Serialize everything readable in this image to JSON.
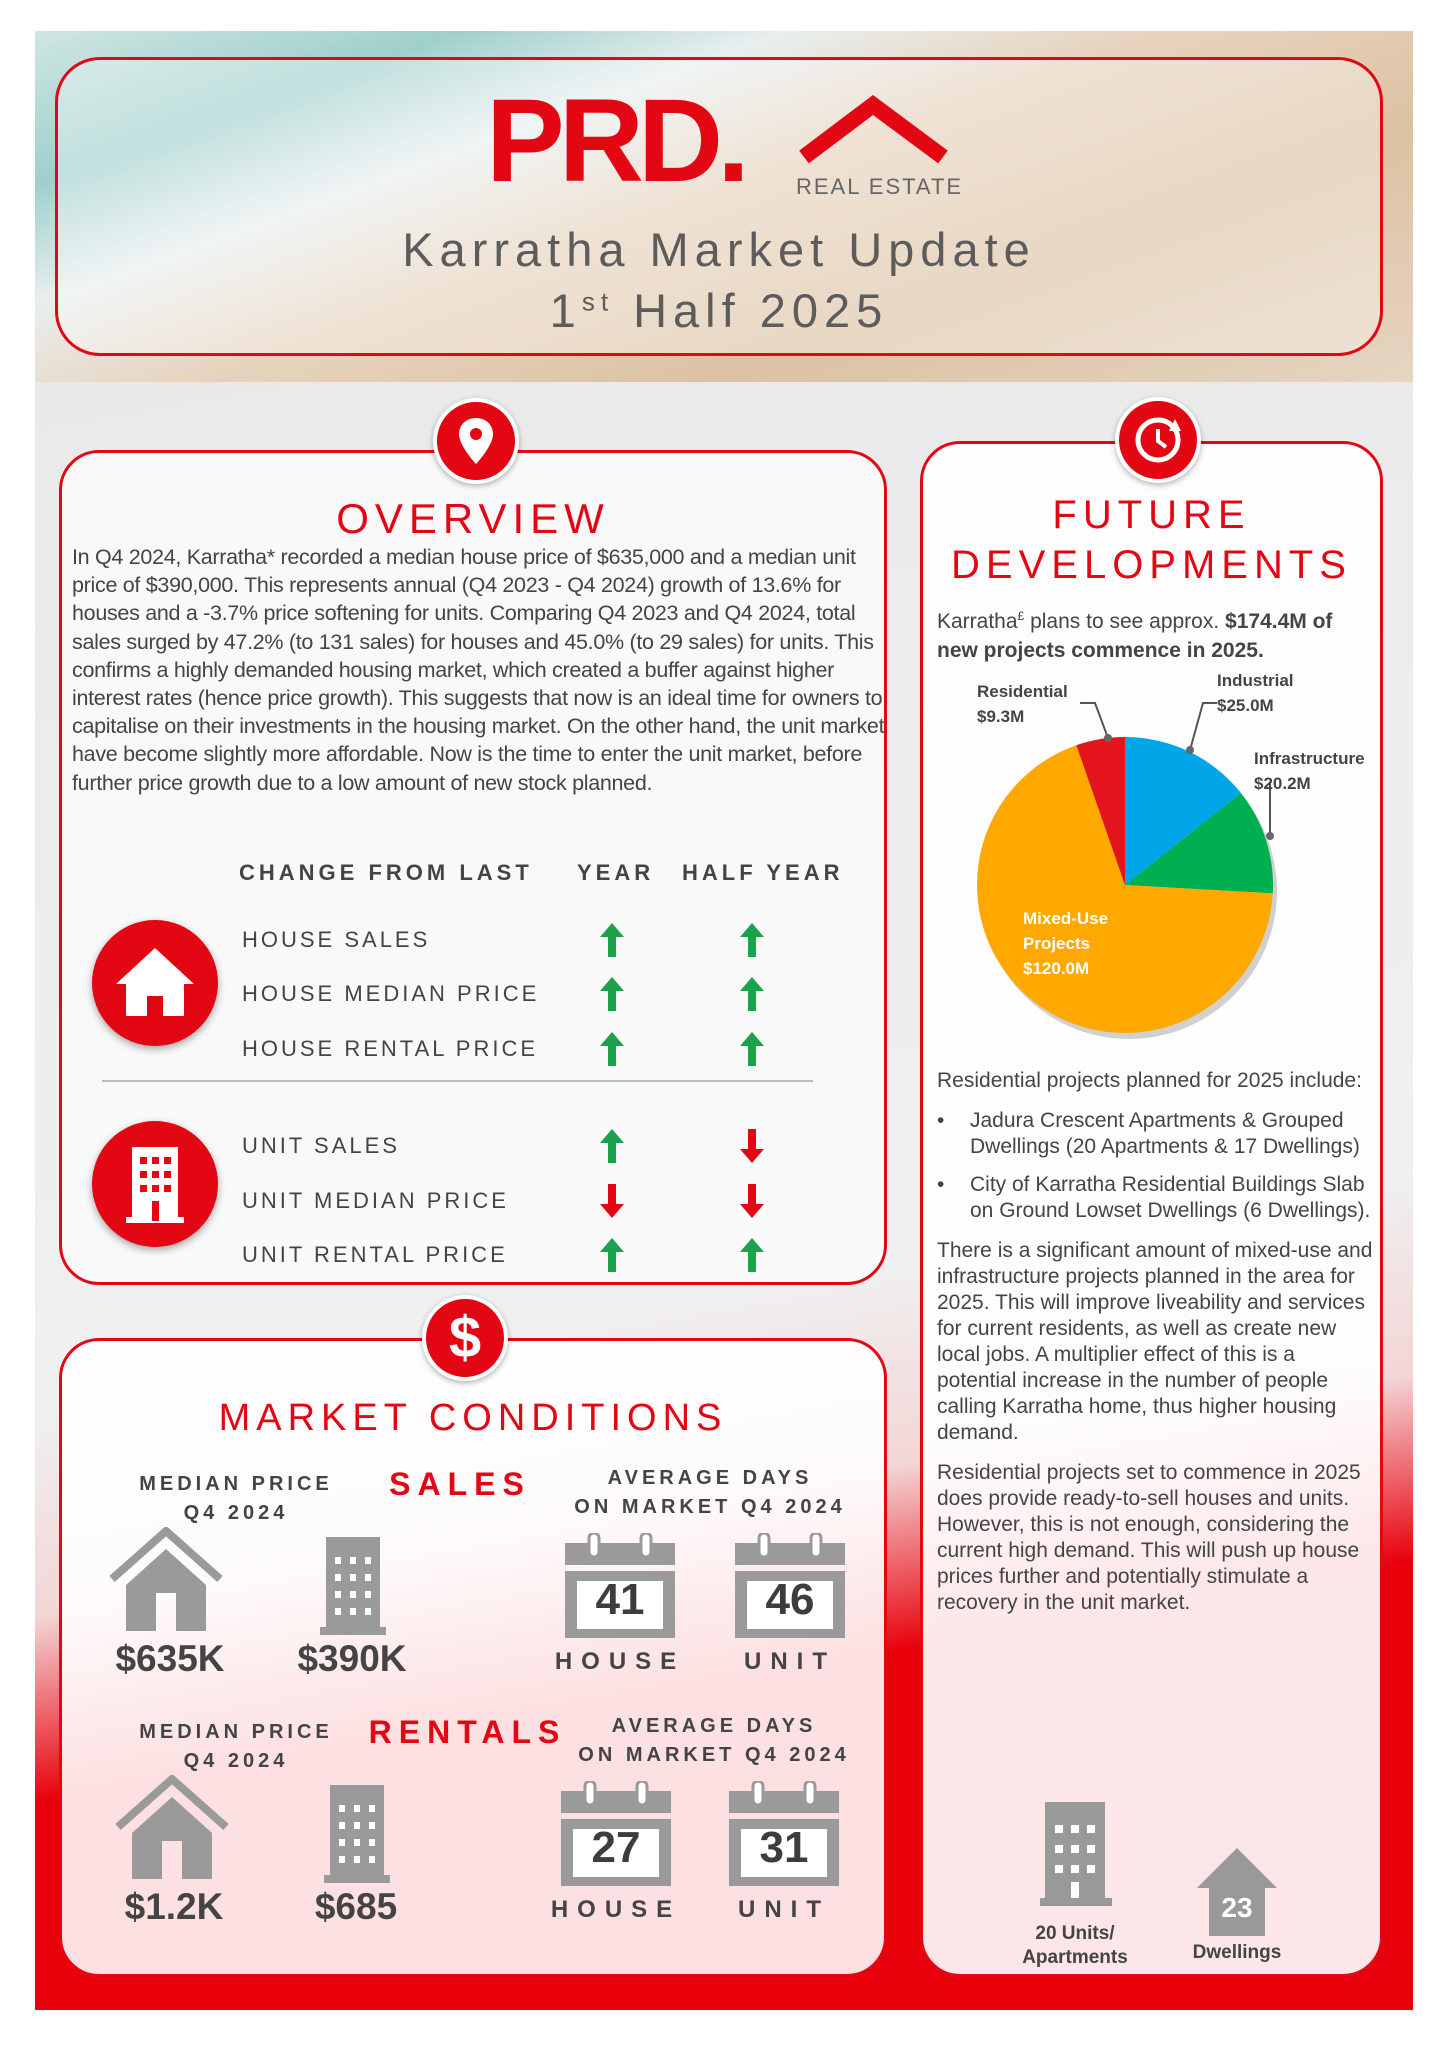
{
  "header": {
    "logo_text": "PRD.",
    "logo_sub": "REAL ESTATE",
    "title": "Karratha Market Update",
    "subtitle_ordinal": "1",
    "subtitle_sup": "st",
    "subtitle_rest": " Half 2025"
  },
  "overview": {
    "title": "OVERVIEW",
    "icon": "map-pin-icon",
    "text": "In Q4 2024, Karratha* recorded a median house price of $635,000 and a median unit price of $390,000. This represents annual (Q4 2023 - Q4 2024) growth of 13.6% for houses and a -3.7% price softening for units. Comparing Q4 2023 and Q4 2024, total sales surged by 47.2% (to 131 sales) for houses and 45.0% (to 29 sales) for units. This confirms a highly demanded housing market, which created a buffer against higher interest rates (hence price growth). This suggests that now is an ideal time for owners to capitalise on their investments in the housing market. On the other hand, the unit market have become slightly more affordable. Now is the time to enter the unit market, before further price growth due to a low amount of new stock planned.",
    "table": {
      "h_change": "CHANGE FROM LAST",
      "h_year": "YEAR",
      "h_half": "HALF YEAR",
      "rows": [
        {
          "label": "HOUSE SALES",
          "year": "up",
          "half": "up"
        },
        {
          "label": "HOUSE MEDIAN PRICE",
          "year": "up",
          "half": "up"
        },
        {
          "label": "HOUSE RENTAL PRICE",
          "year": "up",
          "half": "up"
        },
        {
          "label": "UNIT SALES",
          "year": "up",
          "half": "down"
        },
        {
          "label": "UNIT MEDIAN PRICE",
          "year": "down",
          "half": "down"
        },
        {
          "label": "UNIT RENTAL PRICE",
          "year": "up",
          "half": "up"
        }
      ]
    }
  },
  "market": {
    "title": "MARKET CONDITIONS",
    "icon": "dollar-icon",
    "sales": {
      "heading": "SALES",
      "median_l1": "MEDIAN PRICE",
      "median_l2": "Q4 2024",
      "days_l1": "AVERAGE DAYS",
      "days_l2": "ON MARKET Q4 2024",
      "house_price": "$635K",
      "unit_price": "$390K",
      "house_days": "41",
      "unit_days": "46",
      "house_label": "HOUSE",
      "unit_label": "UNIT"
    },
    "rentals": {
      "heading": "RENTALS",
      "median_l1": "MEDIAN PRICE",
      "median_l2": "Q4 2024",
      "days_l1": "AVERAGE DAYS",
      "days_l2": "ON MARKET Q4 2024",
      "house_price": "$1.2K",
      "unit_price": "$685",
      "house_days": "27",
      "unit_days": "31",
      "house_label": "HOUSE",
      "unit_label": "UNIT"
    }
  },
  "future": {
    "title_l1": "FUTURE",
    "title_l2": "DEVELOPMENTS",
    "icon": "clock-icon",
    "intro_a": "Karratha",
    "intro_sup": "£",
    "intro_b": " plans to see approx. ",
    "intro_bold": "$174.4M of new projects commence in 2025.",
    "p1": "Residential projects planned for 2025 include:",
    "bullets": [
      "Jadura Crescent Apartments & Grouped Dwellings (20 Apartments & 17 Dwellings)",
      "City of Karratha Residential Buildings Slab on Ground Lowset Dwellings (6 Dwellings)."
    ],
    "p2": "There is a significant amount of mixed-use and infrastructure projects planned in the area for 2025. This will improve liveability and services for current residents, as well as create new local jobs. A multiplier effect of this is a potential increase in the number of people calling Karratha home, thus higher housing demand.",
    "p3": "Residential projects set to commence in 2025 does provide ready-to-sell houses and units. However, this is not enough, considering the current high demand. This will push up house prices further and potentially stimulate a recovery in the unit market.",
    "units_l1": "20 Units/",
    "units_l2": "Apartments",
    "dwell_num": "23",
    "dwell_label": "Dwellings"
  },
  "chart_data": {
    "type": "pie",
    "unit": "$M",
    "slices": [
      {
        "name": "Industrial",
        "value": 25.0,
        "label": "$25.0M",
        "color": "#00a6e8"
      },
      {
        "name": "Infrastructure",
        "value": 20.2,
        "label": "$20.2M",
        "color": "#00b050"
      },
      {
        "name": "Mixed-Use Projects",
        "value": 120.0,
        "label": "$120.0M",
        "color": "#ffa800"
      },
      {
        "name": "Residential",
        "value": 9.3,
        "label": "$9.3M",
        "color": "#e3141c"
      }
    ]
  },
  "colors": {
    "brand_red": "#e30613",
    "up": "#1aa34a",
    "down": "#e30613",
    "icon_grey": "#9a9a9a"
  }
}
